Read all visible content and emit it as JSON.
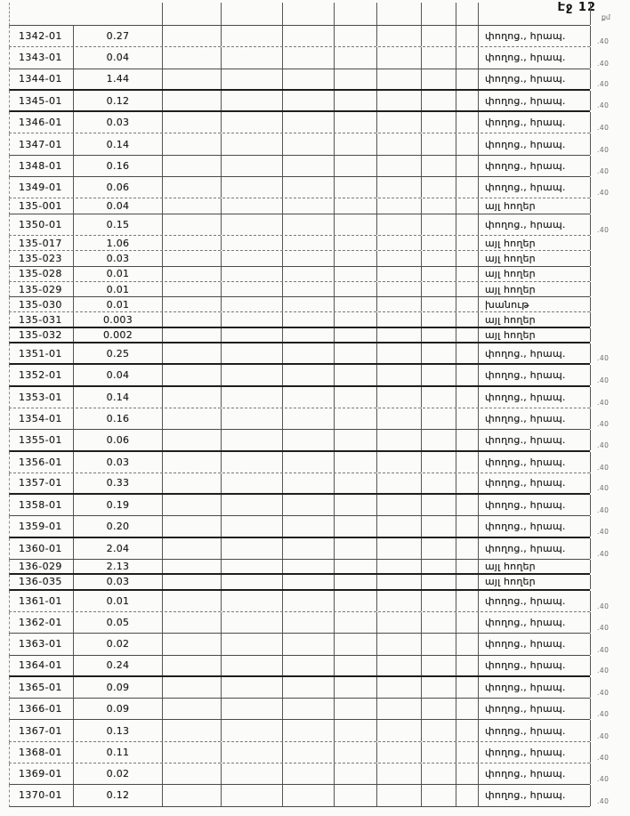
{
  "header": {
    "page_label": "Էջ 12",
    "unit_label": "քմ"
  },
  "colors": {
    "grid_line": "#4a4a4a",
    "text": "#1c1c1c",
    "margin_note": "#6a6a6a",
    "background": "#fbfbf9"
  },
  "table": {
    "column_names": [
      "parcel-id",
      "area-value",
      "empty-1",
      "empty-2",
      "empty-3",
      "empty-4",
      "empty-5",
      "empty-6",
      "empty-7",
      "land-usage"
    ],
    "rows": [
      {
        "id": "1342-01",
        "value": "0.27",
        "usage": "փողոց., հրապ.",
        "note": "40",
        "size": "tall",
        "line": "dashed"
      },
      {
        "id": "1343-01",
        "value": "0.04",
        "usage": "փողոց., հրապ.",
        "note": "40",
        "size": "tall",
        "line": "solid"
      },
      {
        "id": "1344-01",
        "value": "1.44",
        "usage": "փողոց., հրապ.",
        "note": "40",
        "size": "tall",
        "line": "thick"
      },
      {
        "id": "1345-01",
        "value": "0.12",
        "usage": "փողոց., հրապ.",
        "note": "40",
        "size": "tall",
        "line": "thick"
      },
      {
        "id": "1346-01",
        "value": "0.03",
        "usage": "փողոց., հրապ.",
        "note": "40",
        "size": "tall",
        "line": "dashed"
      },
      {
        "id": "1347-01",
        "value": "0.14",
        "usage": "փողոց., հրապ.",
        "note": "40",
        "size": "tall",
        "line": "solid"
      },
      {
        "id": "1348-01",
        "value": "0.16",
        "usage": "փողոց., հրապ.",
        "note": "40",
        "size": "tall",
        "line": "solid"
      },
      {
        "id": "1349-01",
        "value": "0.06",
        "usage": "փողոց., հրապ.",
        "note": "40",
        "size": "tall",
        "line": "dashed"
      },
      {
        "id": "135-001",
        "value": "0.04",
        "usage": "այլ հողեր",
        "note": null,
        "size": "short",
        "line": "solid"
      },
      {
        "id": "1350-01",
        "value": "0.15",
        "usage": "փողոց., հրապ.",
        "note": "40",
        "size": "tall",
        "line": "dashed"
      },
      {
        "id": "135-017",
        "value": "1.06",
        "usage": "այլ հողեր",
        "note": null,
        "size": "short",
        "line": "dashed"
      },
      {
        "id": "135-023",
        "value": "0.03",
        "usage": "այլ հողեր",
        "note": null,
        "size": "short",
        "line": "solid"
      },
      {
        "id": "135-028",
        "value": "0.01",
        "usage": "այլ հողեր",
        "note": null,
        "size": "short",
        "line": "dashed"
      },
      {
        "id": "135-029",
        "value": "0.01",
        "usage": "այլ հողեր",
        "note": null,
        "size": "short",
        "line": "solid"
      },
      {
        "id": "135-030",
        "value": "0.01",
        "usage": "խանութ",
        "note": null,
        "size": "short",
        "line": "dashed"
      },
      {
        "id": "135-031",
        "value": "0.003",
        "usage": "այլ հողեր",
        "note": null,
        "size": "short",
        "line": "thick"
      },
      {
        "id": "135-032",
        "value": "0.002",
        "usage": "այլ հողեր",
        "note": null,
        "size": "short",
        "line": "thick"
      },
      {
        "id": "1351-01",
        "value": "0.25",
        "usage": "փողոց., հրապ.",
        "note": "40",
        "size": "tall",
        "line": "thick"
      },
      {
        "id": "1352-01",
        "value": "0.04",
        "usage": "փողոց., հրապ.",
        "note": "40",
        "size": "tall",
        "line": "thick"
      },
      {
        "id": "1353-01",
        "value": "0.14",
        "usage": "փողոց., հրապ.",
        "note": "40",
        "size": "tall",
        "line": "dashed"
      },
      {
        "id": "1354-01",
        "value": "0.16",
        "usage": "փողոց., հրապ.",
        "note": "40",
        "size": "tall",
        "line": "solid"
      },
      {
        "id": "1355-01",
        "value": "0.06",
        "usage": "փողոց., հրապ.",
        "note": "40",
        "size": "tall",
        "line": "thick"
      },
      {
        "id": "1356-01",
        "value": "0.03",
        "usage": "փողոց., հրապ.",
        "note": "40",
        "size": "tall",
        "line": "dashed"
      },
      {
        "id": "1357-01",
        "value": "0.33",
        "usage": "փողոց., հրապ.",
        "note": "40",
        "size": "tall",
        "line": "thick"
      },
      {
        "id": "1358-01",
        "value": "0.19",
        "usage": "փողոց., հրապ.",
        "note": "40",
        "size": "tall",
        "line": "solid"
      },
      {
        "id": "1359-01",
        "value": "0.20",
        "usage": "փողոց., հրապ.",
        "note": "40",
        "size": "tall",
        "line": "thick"
      },
      {
        "id": "1360-01",
        "value": "2.04",
        "usage": "փողոց., հրապ.",
        "note": "40",
        "size": "tall",
        "line": "solid"
      },
      {
        "id": "136-029",
        "value": "2.13",
        "usage": "այլ հողեր",
        "note": null,
        "size": "short",
        "line": "thick"
      },
      {
        "id": "136-035",
        "value": "0.03",
        "usage": "այլ հողեր",
        "note": null,
        "size": "short",
        "line": "thick"
      },
      {
        "id": "1361-01",
        "value": "0.01",
        "usage": "փողոց., հրապ.",
        "note": "40",
        "size": "tall",
        "line": "dashed"
      },
      {
        "id": "1362-01",
        "value": "0.05",
        "usage": "փողոց., հրապ.",
        "note": "40",
        "size": "tall",
        "line": "solid"
      },
      {
        "id": "1363-01",
        "value": "0.02",
        "usage": "փողոց., հրապ.",
        "note": "40",
        "size": "tall",
        "line": "solid"
      },
      {
        "id": "1364-01",
        "value": "0.24",
        "usage": "փողոց., հրապ.",
        "note": "40",
        "size": "tall",
        "line": "thick"
      },
      {
        "id": "1365-01",
        "value": "0.09",
        "usage": "փողոց., հրապ.",
        "note": "40",
        "size": "tall",
        "line": "solid"
      },
      {
        "id": "1366-01",
        "value": "0.09",
        "usage": "փողոց., հրապ.",
        "note": "40",
        "size": "tall",
        "line": "solid"
      },
      {
        "id": "1367-01",
        "value": "0.13",
        "usage": "փողոց., հրապ.",
        "note": "40",
        "size": "tall",
        "line": "dashed"
      },
      {
        "id": "1368-01",
        "value": "0.11",
        "usage": "փողոց., հրապ.",
        "note": "40",
        "size": "tall",
        "line": "dashed"
      },
      {
        "id": "1369-01",
        "value": "0.02",
        "usage": "փողոց., հրապ.",
        "note": "40",
        "size": "tall",
        "line": "solid"
      },
      {
        "id": "1370-01",
        "value": "0.12",
        "usage": "փողոց., հրապ.",
        "note": "40",
        "size": "tall",
        "line": "solid"
      }
    ]
  }
}
